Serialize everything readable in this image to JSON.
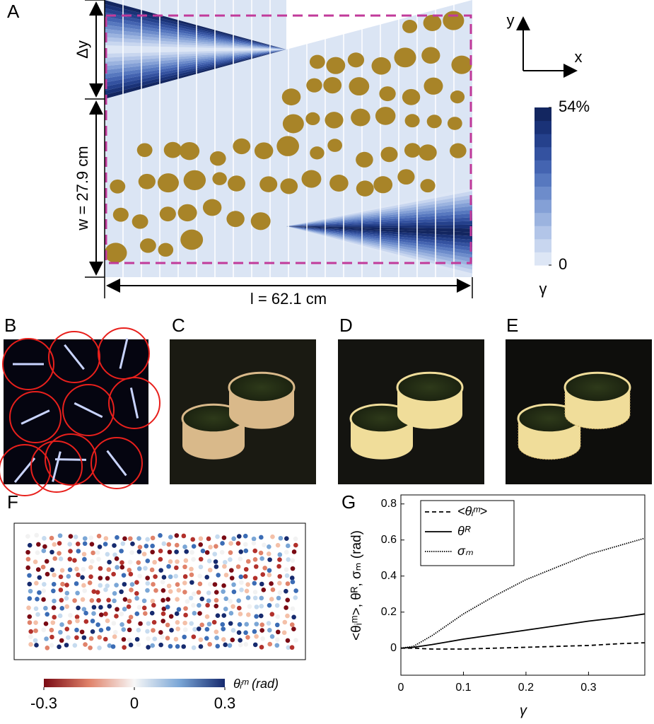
{
  "panel_labels": [
    "A",
    "B",
    "C",
    "D",
    "E",
    "F",
    "G"
  ],
  "panel_a": {
    "dy_label": "Δy",
    "w_label": "w = 27.9 cm",
    "l_label": "l = 62.1 cm",
    "axis_y": "y",
    "axis_x": "x",
    "colorbar": {
      "lim": [
        0,
        54
      ],
      "ticks": [
        {
          "value": 54,
          "label": "54%"
        },
        0
      ],
      "label": "γ"
    }
  },
  "panel_f": {
    "colorbar": {
      "lim": [
        -0.3,
        0.3
      ],
      "ticks": [
        -0.3,
        0,
        0.3
      ],
      "label": "θᵢᵐ (rad)"
    }
  },
  "chart_data": {
    "type": "line",
    "xlabel": "γ",
    "ylabel": "<θᵢᵐ>, θᴿ, σₘ (rad)",
    "x": [
      0,
      0.02,
      0.05,
      0.1,
      0.15,
      0.2,
      0.25,
      0.3,
      0.35,
      0.39
    ],
    "series": [
      {
        "name": "<θᵢᵐ>",
        "color": "#000000",
        "dash": "6,4",
        "values": [
          0,
          0,
          -0.005,
          -0.005,
          0,
          0.005,
          0.01,
          0.015,
          0.025,
          0.03
        ]
      },
      {
        "name": "θᴿ",
        "color": "#000000",
        "dash": "none",
        "values": [
          0,
          0.005,
          0.02,
          0.05,
          0.075,
          0.1,
          0.125,
          0.15,
          0.17,
          0.19
        ]
      },
      {
        "name": "σₘ",
        "color": "#000000",
        "dash": "1.5,1.5",
        "values": [
          0,
          0.01,
          0.07,
          0.19,
          0.29,
          0.38,
          0.45,
          0.52,
          0.57,
          0.61
        ]
      }
    ],
    "xlim": [
      0,
      0.39
    ],
    "ylim": [
      -0.15,
      0.85
    ],
    "xticks": [
      0,
      0.1,
      0.2,
      0.3
    ],
    "yticks": [
      0,
      0.2,
      0.4,
      0.6,
      0.8
    ],
    "legend": "upper-left"
  }
}
